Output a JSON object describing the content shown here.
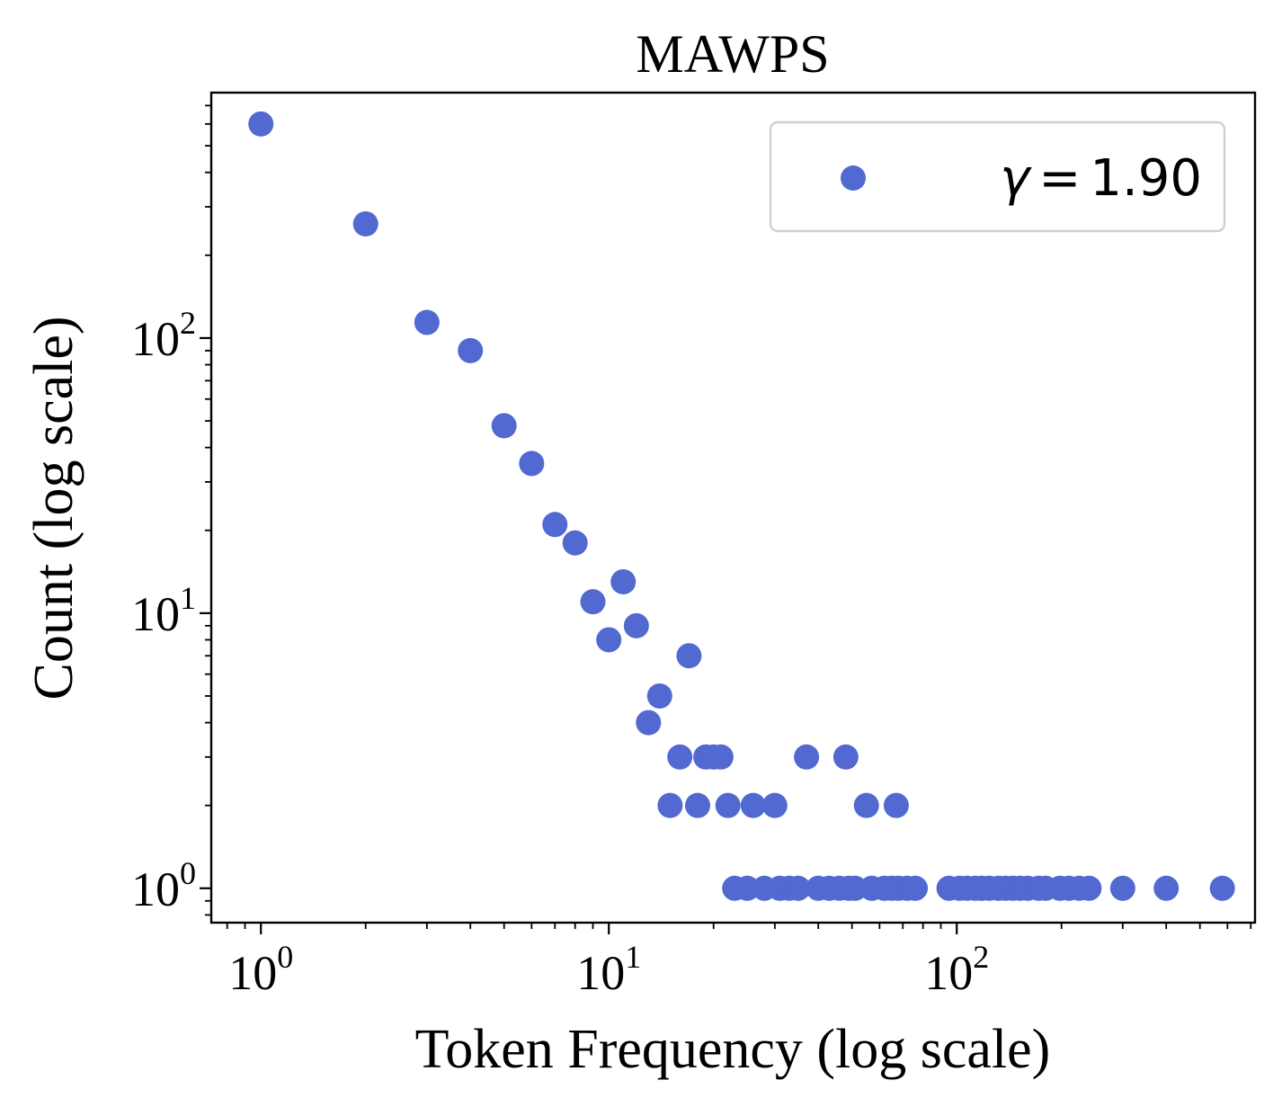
{
  "chart_data": {
    "type": "scatter",
    "title": "MAWPS",
    "xlabel": "Token Frequency (log scale)",
    "ylabel": "Count (log scale)",
    "xscale": "log",
    "yscale": "log",
    "xlim": [
      0.72,
      720
    ],
    "ylim": [
      0.75,
      780
    ],
    "x_ticks": [
      1,
      10,
      100
    ],
    "y_ticks": [
      1,
      10,
      100
    ],
    "tick_base": "10",
    "tick_exponents": {
      "x": [
        "0",
        "1",
        "2"
      ],
      "y": [
        "0",
        "1",
        "2"
      ]
    },
    "grid": false,
    "legend": {
      "position": "top-right",
      "symbol": "γ",
      "operator": "=",
      "value": "1.90"
    },
    "series": [
      {
        "name": "γ = 1.90",
        "color": "#5169d0",
        "points": [
          {
            "x": 1,
            "y": 600
          },
          {
            "x": 2,
            "y": 260
          },
          {
            "x": 3,
            "y": 114
          },
          {
            "x": 4,
            "y": 90
          },
          {
            "x": 5,
            "y": 48
          },
          {
            "x": 6,
            "y": 35
          },
          {
            "x": 7,
            "y": 21
          },
          {
            "x": 8,
            "y": 18
          },
          {
            "x": 9,
            "y": 11
          },
          {
            "x": 10,
            "y": 8
          },
          {
            "x": 11,
            "y": 13
          },
          {
            "x": 12,
            "y": 9
          },
          {
            "x": 13,
            "y": 4
          },
          {
            "x": 14,
            "y": 5
          },
          {
            "x": 15,
            "y": 2
          },
          {
            "x": 16,
            "y": 3
          },
          {
            "x": 17,
            "y": 7
          },
          {
            "x": 18,
            "y": 2
          },
          {
            "x": 19,
            "y": 3
          },
          {
            "x": 20,
            "y": 3
          },
          {
            "x": 21,
            "y": 3
          },
          {
            "x": 22,
            "y": 2
          },
          {
            "x": 26,
            "y": 2
          },
          {
            "x": 30,
            "y": 2
          },
          {
            "x": 37,
            "y": 3
          },
          {
            "x": 48,
            "y": 3
          },
          {
            "x": 55,
            "y": 2
          },
          {
            "x": 67,
            "y": 2
          },
          {
            "x": 23,
            "y": 1
          },
          {
            "x": 25,
            "y": 1
          },
          {
            "x": 28,
            "y": 1
          },
          {
            "x": 31,
            "y": 1
          },
          {
            "x": 33,
            "y": 1
          },
          {
            "x": 35,
            "y": 1
          },
          {
            "x": 40,
            "y": 1
          },
          {
            "x": 43,
            "y": 1
          },
          {
            "x": 46,
            "y": 1
          },
          {
            "x": 49,
            "y": 1
          },
          {
            "x": 51,
            "y": 1
          },
          {
            "x": 57,
            "y": 1
          },
          {
            "x": 62,
            "y": 1
          },
          {
            "x": 65,
            "y": 1
          },
          {
            "x": 68,
            "y": 1
          },
          {
            "x": 72,
            "y": 1
          },
          {
            "x": 76,
            "y": 1
          },
          {
            "x": 95,
            "y": 1
          },
          {
            "x": 102,
            "y": 1
          },
          {
            "x": 107,
            "y": 1
          },
          {
            "x": 113,
            "y": 1
          },
          {
            "x": 118,
            "y": 1
          },
          {
            "x": 124,
            "y": 1
          },
          {
            "x": 132,
            "y": 1
          },
          {
            "x": 138,
            "y": 1
          },
          {
            "x": 145,
            "y": 1
          },
          {
            "x": 152,
            "y": 1
          },
          {
            "x": 160,
            "y": 1
          },
          {
            "x": 172,
            "y": 1
          },
          {
            "x": 180,
            "y": 1
          },
          {
            "x": 198,
            "y": 1
          },
          {
            "x": 210,
            "y": 1
          },
          {
            "x": 225,
            "y": 1
          },
          {
            "x": 240,
            "y": 1
          },
          {
            "x": 300,
            "y": 1
          },
          {
            "x": 400,
            "y": 1
          },
          {
            "x": 580,
            "y": 1
          }
        ]
      }
    ]
  }
}
